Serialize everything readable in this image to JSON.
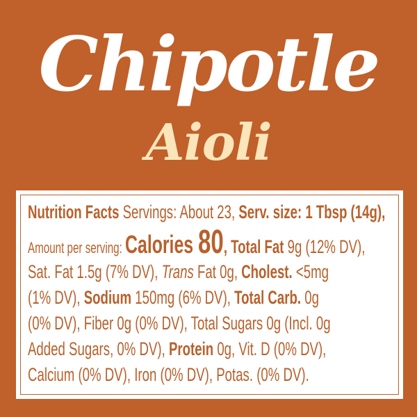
{
  "brand_title": "Chipotle",
  "brand_subtitle": "Aioli",
  "colors": {
    "background": "#C0602A",
    "title": "#FFFFFF",
    "subtitle": "#FBE5BB",
    "text": "#B8612C",
    "panel": "#FFFFFF"
  },
  "nutrition": {
    "heading": "Nutrition Facts",
    "servings": " Servings: About 23, ",
    "serving_size": "Serv. size: 1 Tbsp (14g),",
    "amount_label": "Amount per serving: ",
    "calories_label": "Calories ",
    "calories_value": "80",
    "total_fat_label": ", Total Fat",
    "total_fat_value": " 9g (12% DV),",
    "sat_fat": "Sat. Fat 1.5g (7% DV), ",
    "trans_label": "Trans",
    "trans_value": " Fat 0g, ",
    "cholest_label": "Cholest.",
    "cholest_value": " <5mg",
    "cholest_dv": "(1% DV), ",
    "sodium_label": "Sodium",
    "sodium_value": " 150mg (6% DV), ",
    "carb_label": "Total Carb.",
    "carb_value": " 0g",
    "line5": "(0% DV), Fiber 0g (0% DV), Total Sugars 0g (Incl. 0g",
    "added_sugars": "Added Sugars, 0% DV), ",
    "protein_label": "Protein",
    "protein_value": " 0g, Vit. D (0% DV),",
    "line7": "Calcium (0% DV), Iron (0% DV), Potas. (0% DV)."
  }
}
